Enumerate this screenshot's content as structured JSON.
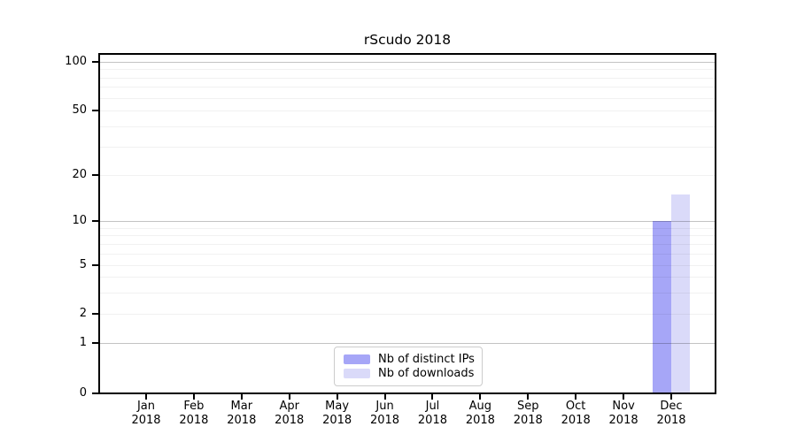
{
  "figure_title": "rScudo 2018",
  "chart_data": {
    "type": "bar",
    "title": "rScudo 2018",
    "categories": [
      "Jan 2018",
      "Feb 2018",
      "Mar 2018",
      "Apr 2018",
      "May 2018",
      "Jun 2018",
      "Jul 2018",
      "Aug 2018",
      "Sep 2018",
      "Oct 2018",
      "Nov 2018",
      "Dec 2018"
    ],
    "month_labels": [
      "Jan",
      "Feb",
      "Mar",
      "Apr",
      "May",
      "Jun",
      "Jul",
      "Aug",
      "Sep",
      "Oct",
      "Nov",
      "Dec"
    ],
    "year_label": "2018",
    "series": [
      {
        "name": "Nb of distinct IPs",
        "color": "#a6a6f7",
        "values": [
          0,
          0,
          0,
          0,
          0,
          0,
          0,
          0,
          0,
          0,
          0,
          10
        ]
      },
      {
        "name": "Nb of downloads",
        "color": "#dadaf9",
        "values": [
          0,
          0,
          0,
          0,
          0,
          0,
          0,
          0,
          0,
          0,
          0,
          15
        ]
      }
    ],
    "xlabel": "",
    "ylabel": "",
    "y_axis": {
      "scale": "log-1-2-5 with linear segment between 0 and 1",
      "tick_values": [
        0,
        1,
        2,
        5,
        10,
        20,
        50,
        100
      ],
      "major_grid_values": [
        1,
        10,
        100
      ],
      "minor_grid_values": [
        3,
        4,
        6,
        7,
        8,
        9,
        30,
        40,
        60,
        70,
        80,
        90
      ],
      "ylim": [
        0,
        110
      ]
    },
    "grid": "horizontal major and minor gridlines",
    "legend_position": "lower center inside plot"
  }
}
